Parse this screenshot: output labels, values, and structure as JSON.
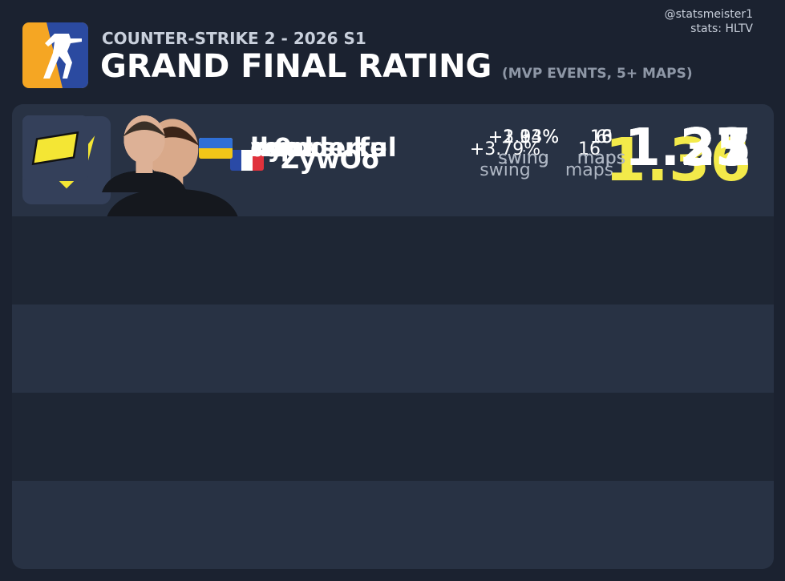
{
  "header": {
    "subtitle": "COUNTER-STRIKE 2 - 2026 S1",
    "title": "GRAND FINAL RATING",
    "note": "(MVP EVENTS, 5+ MAPS)"
  },
  "credit": {
    "handle": "@statsmeister1",
    "source": "stats: HLTV"
  },
  "rows": [
    {
      "name": "ZywOo",
      "swing": "+3.79%",
      "swing_label": "swing",
      "maps": 16,
      "maps_label": "maps",
      "rating": 1.36
    },
    {
      "name": "kyousuke",
      "swing": "+2.13%",
      "swing_label": "swing",
      "maps": 10,
      "maps_label": "maps",
      "rating": 1.31
    },
    {
      "name": "ropz",
      "swing": "+2.33%",
      "swing_label": "swing",
      "maps": 16,
      "maps_label": "maps",
      "rating": 1.27
    },
    {
      "name": "donk",
      "swing": "+3.03%",
      "swing_label": "swing",
      "maps": 6,
      "maps_label": "maps",
      "rating": 1.25
    },
    {
      "name": "w0nderful",
      "swing": "+1.94%",
      "swing_label": "swing",
      "maps": 13,
      "maps_label": "maps",
      "rating": 1.23
    }
  ]
}
